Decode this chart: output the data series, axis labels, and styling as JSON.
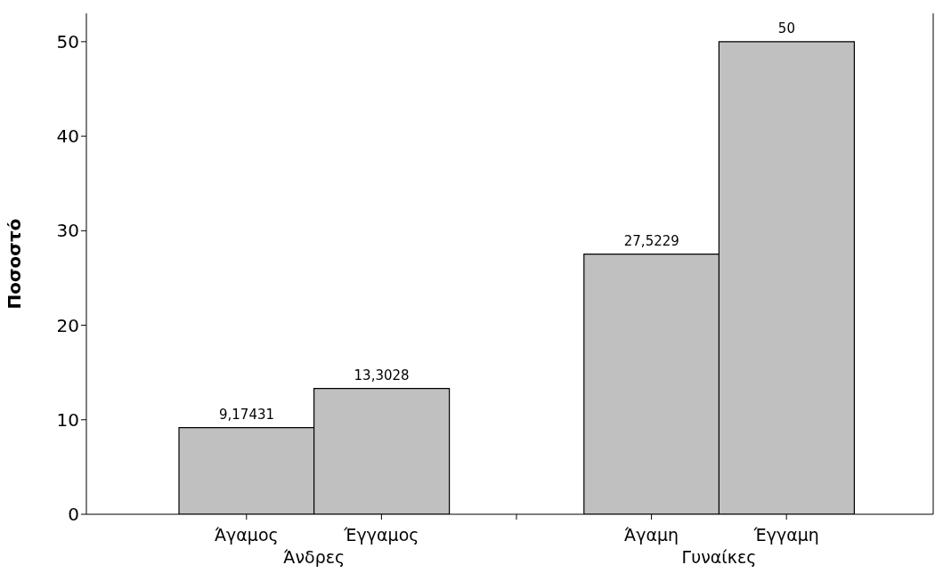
{
  "chart_data": {
    "type": "bar",
    "ylabel": "Ποσοστό",
    "categories": [
      "Άγαμος",
      "Έγγαμος",
      null,
      "Άγαμη",
      "Έγγαμη"
    ],
    "values": [
      9.17431,
      13.3028,
      null,
      27.5229,
      50
    ],
    "value_labels": [
      "9,17431",
      "13,3028",
      null,
      "27,5229",
      "50"
    ],
    "color": "#c0c0c0",
    "annotations": [
      "Άνδρες",
      "Γυναίκες"
    ],
    "ylim": [
      0,
      53
    ],
    "yticks": [
      0,
      10,
      20,
      30,
      40,
      50
    ]
  }
}
